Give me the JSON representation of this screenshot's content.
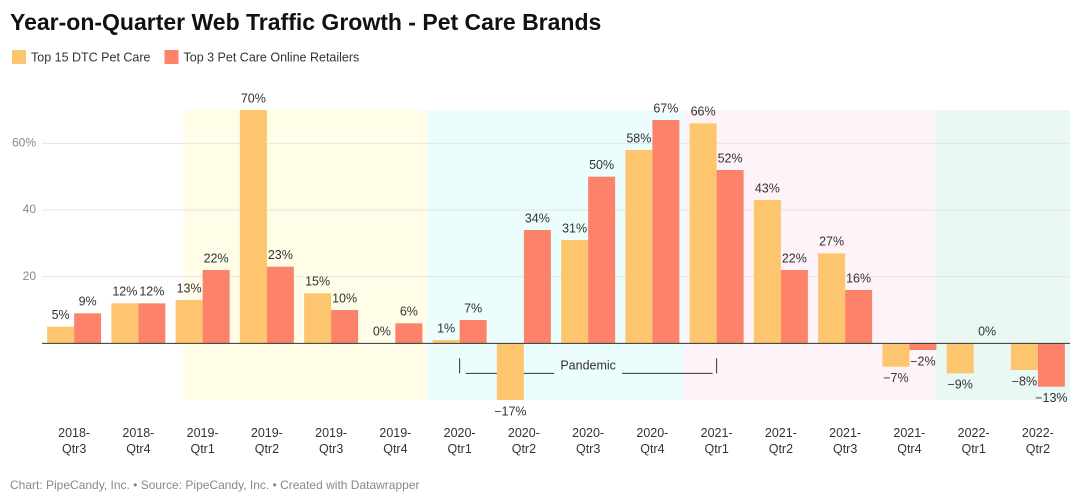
{
  "chart_data": {
    "type": "bar",
    "title": "Year-on-Quarter Web Traffic Growth - Pet Care Brands",
    "categories": [
      "2018-Qtr3",
      "2018-Qtr4",
      "2019-Qtr1",
      "2019-Qtr2",
      "2019-Qtr3",
      "2019-Qtr4",
      "2020-Qtr1",
      "2020-Qtr2",
      "2020-Qtr3",
      "2020-Qtr4",
      "2021-Qtr1",
      "2021-Qtr2",
      "2021-Qtr3",
      "2021-Qtr4",
      "2022-Qtr1",
      "2022-Qtr2"
    ],
    "series": [
      {
        "name": "Top 15 DTC Pet Care",
        "color": "#fec56f",
        "values": [
          5,
          12,
          13,
          70,
          15,
          0,
          1,
          -17,
          31,
          58,
          66,
          43,
          27,
          -7,
          -9,
          -8
        ],
        "value_labels": [
          "5%",
          "12%",
          "13%",
          "70%",
          "15%",
          "0%",
          "1%",
          "−17%",
          "31%",
          "58%",
          "66%",
          "43%",
          "27%",
          "−7%",
          "−9%",
          "−8%"
        ]
      },
      {
        "name": "Top 3 Pet Care Online Retailers",
        "color": "#fc826a",
        "values": [
          9,
          12,
          22,
          23,
          10,
          6,
          7,
          34,
          50,
          67,
          52,
          22,
          16,
          -2,
          0,
          -13
        ],
        "value_labels": [
          "9%",
          "12%",
          "22%",
          "23%",
          "10%",
          "6%",
          "7%",
          "34%",
          "50%",
          "67%",
          "52%",
          "22%",
          "16%",
          "−2%",
          "0%",
          "−13%"
        ]
      }
    ],
    "ylim": [
      -17,
      70
    ],
    "yticks": [
      20,
      40,
      {
        "value": 60,
        "label": "60%"
      }
    ],
    "grid": true,
    "annotation": "Pandemic",
    "footer": "Chart: PipeCandy, Inc. • Source: PipeCandy, Inc. • Created with Datawrapper"
  }
}
